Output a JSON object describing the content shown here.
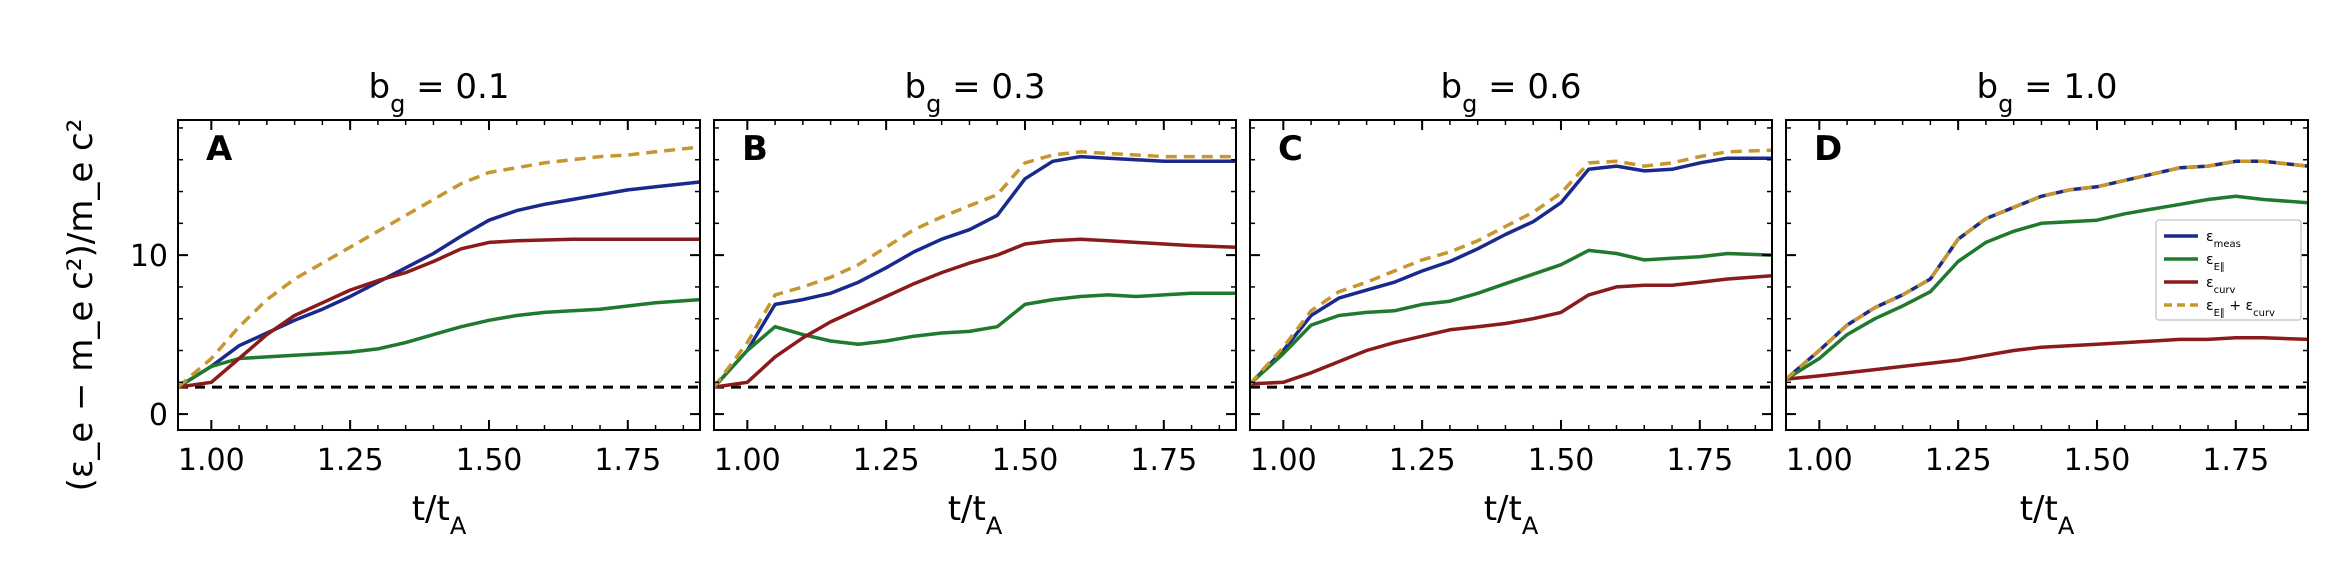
{
  "figure": {
    "ylabel": "(ε_e − m_e c²)/m_e c²",
    "xlabel": "t/t_A",
    "xlim": [
      0.94,
      1.88
    ],
    "ylim": [
      -1,
      18.5
    ],
    "xticks": [
      "1.00",
      "1.25",
      "1.50",
      "1.75"
    ],
    "xtick_values": [
      1.0,
      1.25,
      1.5,
      1.75
    ],
    "yticks": [
      "0",
      "10"
    ],
    "ytick_values": [
      0,
      10
    ],
    "baseline_value": 1.7,
    "legend": {
      "location": "right of panel D",
      "entries": [
        "ε_meas",
        "ε_E∥",
        "ε_curv",
        "ε_E∥ + ε_curv"
      ]
    },
    "colors": {
      "meas": "#1a2a8c",
      "epar": "#1f7a2e",
      "curv": "#8b1a1a",
      "sum": "#c8962e",
      "baseline": "#000000"
    }
  },
  "chart_data": [
    {
      "type": "line",
      "panel": "A",
      "title": "b_g = 0.1",
      "x": [
        0.94,
        1.0,
        1.05,
        1.1,
        1.15,
        1.2,
        1.25,
        1.3,
        1.35,
        1.4,
        1.45,
        1.5,
        1.55,
        1.6,
        1.65,
        1.7,
        1.75,
        1.8,
        1.88
      ],
      "series": [
        {
          "name": "ε_meas",
          "key": "meas",
          "dashed": false,
          "values": [
            1.7,
            3.0,
            4.3,
            5.1,
            5.9,
            6.6,
            7.4,
            8.3,
            9.2,
            10.1,
            11.2,
            12.2,
            12.8,
            13.2,
            13.5,
            13.8,
            14.1,
            14.3,
            14.6
          ]
        },
        {
          "name": "ε_E∥",
          "key": "epar",
          "dashed": false,
          "values": [
            1.7,
            3.0,
            3.5,
            3.6,
            3.7,
            3.8,
            3.9,
            4.1,
            4.5,
            5.0,
            5.5,
            5.9,
            6.2,
            6.4,
            6.5,
            6.6,
            6.8,
            7.0,
            7.2
          ]
        },
        {
          "name": "ε_curv",
          "key": "curv",
          "dashed": false,
          "values": [
            1.7,
            2.0,
            3.5,
            5.0,
            6.2,
            7.0,
            7.8,
            8.4,
            8.9,
            9.6,
            10.4,
            10.8,
            10.9,
            10.95,
            11.0,
            11.0,
            11.0,
            11.0,
            11.0
          ]
        },
        {
          "name": "ε_E∥ + ε_curv",
          "key": "sum",
          "dashed": true,
          "values": [
            1.7,
            3.5,
            5.5,
            7.2,
            8.5,
            9.5,
            10.5,
            11.5,
            12.5,
            13.5,
            14.5,
            15.2,
            15.5,
            15.8,
            16.0,
            16.2,
            16.3,
            16.5,
            16.8
          ]
        }
      ]
    },
    {
      "type": "line",
      "panel": "B",
      "title": "b_g = 0.3",
      "x": [
        0.94,
        1.0,
        1.05,
        1.1,
        1.15,
        1.2,
        1.25,
        1.3,
        1.35,
        1.4,
        1.45,
        1.5,
        1.55,
        1.6,
        1.65,
        1.7,
        1.75,
        1.8,
        1.88
      ],
      "series": [
        {
          "name": "ε_meas",
          "key": "meas",
          "dashed": false,
          "values": [
            1.7,
            4.0,
            6.9,
            7.2,
            7.6,
            8.3,
            9.2,
            10.2,
            11.0,
            11.6,
            12.5,
            14.8,
            15.9,
            16.2,
            16.1,
            16.0,
            15.9,
            15.9,
            15.9
          ]
        },
        {
          "name": "ε_E∥",
          "key": "epar",
          "dashed": false,
          "values": [
            1.7,
            4.0,
            5.5,
            5.0,
            4.6,
            4.4,
            4.6,
            4.9,
            5.1,
            5.2,
            5.5,
            6.9,
            7.2,
            7.4,
            7.5,
            7.4,
            7.5,
            7.6,
            7.6
          ]
        },
        {
          "name": "ε_curv",
          "key": "curv",
          "dashed": false,
          "values": [
            1.7,
            2.0,
            3.6,
            4.8,
            5.8,
            6.6,
            7.4,
            8.2,
            8.9,
            9.5,
            10.0,
            10.7,
            10.9,
            11.0,
            10.9,
            10.8,
            10.7,
            10.6,
            10.5
          ]
        },
        {
          "name": "ε_E∥ + ε_curv",
          "key": "sum",
          "dashed": true,
          "values": [
            1.7,
            4.5,
            7.5,
            8.0,
            8.6,
            9.4,
            10.5,
            11.6,
            12.4,
            13.1,
            13.8,
            15.8,
            16.3,
            16.5,
            16.4,
            16.3,
            16.2,
            16.2,
            16.2
          ]
        }
      ]
    },
    {
      "type": "line",
      "panel": "C",
      "title": "b_g = 0.6",
      "x": [
        0.94,
        1.0,
        1.05,
        1.1,
        1.15,
        1.2,
        1.25,
        1.3,
        1.35,
        1.4,
        1.45,
        1.5,
        1.55,
        1.6,
        1.65,
        1.7,
        1.75,
        1.8,
        1.88
      ],
      "series": [
        {
          "name": "ε_meas",
          "key": "meas",
          "dashed": false,
          "values": [
            1.9,
            4.0,
            6.2,
            7.3,
            7.8,
            8.3,
            9.0,
            9.6,
            10.4,
            11.3,
            12.1,
            13.3,
            15.4,
            15.6,
            15.3,
            15.4,
            15.8,
            16.1,
            16.1
          ]
        },
        {
          "name": "ε_E∥",
          "key": "epar",
          "dashed": false,
          "values": [
            1.9,
            3.8,
            5.6,
            6.2,
            6.4,
            6.5,
            6.9,
            7.1,
            7.6,
            8.2,
            8.8,
            9.4,
            10.3,
            10.1,
            9.7,
            9.8,
            9.9,
            10.1,
            10.0
          ]
        },
        {
          "name": "ε_curv",
          "key": "curv",
          "dashed": false,
          "values": [
            1.9,
            2.0,
            2.6,
            3.3,
            4.0,
            4.5,
            4.9,
            5.3,
            5.5,
            5.7,
            6.0,
            6.4,
            7.5,
            8.0,
            8.1,
            8.1,
            8.3,
            8.5,
            8.7
          ]
        },
        {
          "name": "ε_E∥ + ε_curv",
          "key": "sum",
          "dashed": true,
          "values": [
            1.9,
            4.2,
            6.5,
            7.7,
            8.3,
            9.0,
            9.7,
            10.2,
            10.9,
            11.8,
            12.7,
            13.9,
            15.8,
            15.9,
            15.6,
            15.8,
            16.2,
            16.5,
            16.6
          ]
        }
      ]
    },
    {
      "type": "line",
      "panel": "D",
      "title": "b_g = 1.0",
      "x": [
        0.94,
        1.0,
        1.05,
        1.1,
        1.15,
        1.2,
        1.25,
        1.3,
        1.35,
        1.4,
        1.45,
        1.5,
        1.55,
        1.6,
        1.65,
        1.7,
        1.75,
        1.8,
        1.88
      ],
      "series": [
        {
          "name": "ε_meas",
          "key": "meas",
          "dashed": false,
          "values": [
            2.2,
            4.0,
            5.6,
            6.7,
            7.5,
            8.5,
            11.0,
            12.3,
            13.0,
            13.7,
            14.1,
            14.3,
            14.7,
            15.1,
            15.5,
            15.6,
            15.9,
            15.9,
            15.6
          ]
        },
        {
          "name": "ε_E∥",
          "key": "epar",
          "dashed": false,
          "values": [
            2.2,
            3.5,
            5.0,
            6.0,
            6.8,
            7.7,
            9.6,
            10.8,
            11.5,
            12.0,
            12.1,
            12.2,
            12.6,
            12.9,
            13.2,
            13.5,
            13.7,
            13.5,
            13.3
          ]
        },
        {
          "name": "ε_curv",
          "key": "curv",
          "dashed": false,
          "values": [
            2.2,
            2.4,
            2.6,
            2.8,
            3.0,
            3.2,
            3.4,
            3.7,
            4.0,
            4.2,
            4.3,
            4.4,
            4.5,
            4.6,
            4.7,
            4.7,
            4.8,
            4.8,
            4.7
          ]
        },
        {
          "name": "ε_E∥ + ε_curv",
          "key": "sum",
          "dashed": true,
          "values": [
            2.2,
            4.0,
            5.6,
            6.7,
            7.5,
            8.5,
            11.0,
            12.3,
            13.0,
            13.7,
            14.1,
            14.3,
            14.7,
            15.1,
            15.5,
            15.6,
            15.9,
            15.9,
            15.6
          ]
        }
      ]
    }
  ]
}
